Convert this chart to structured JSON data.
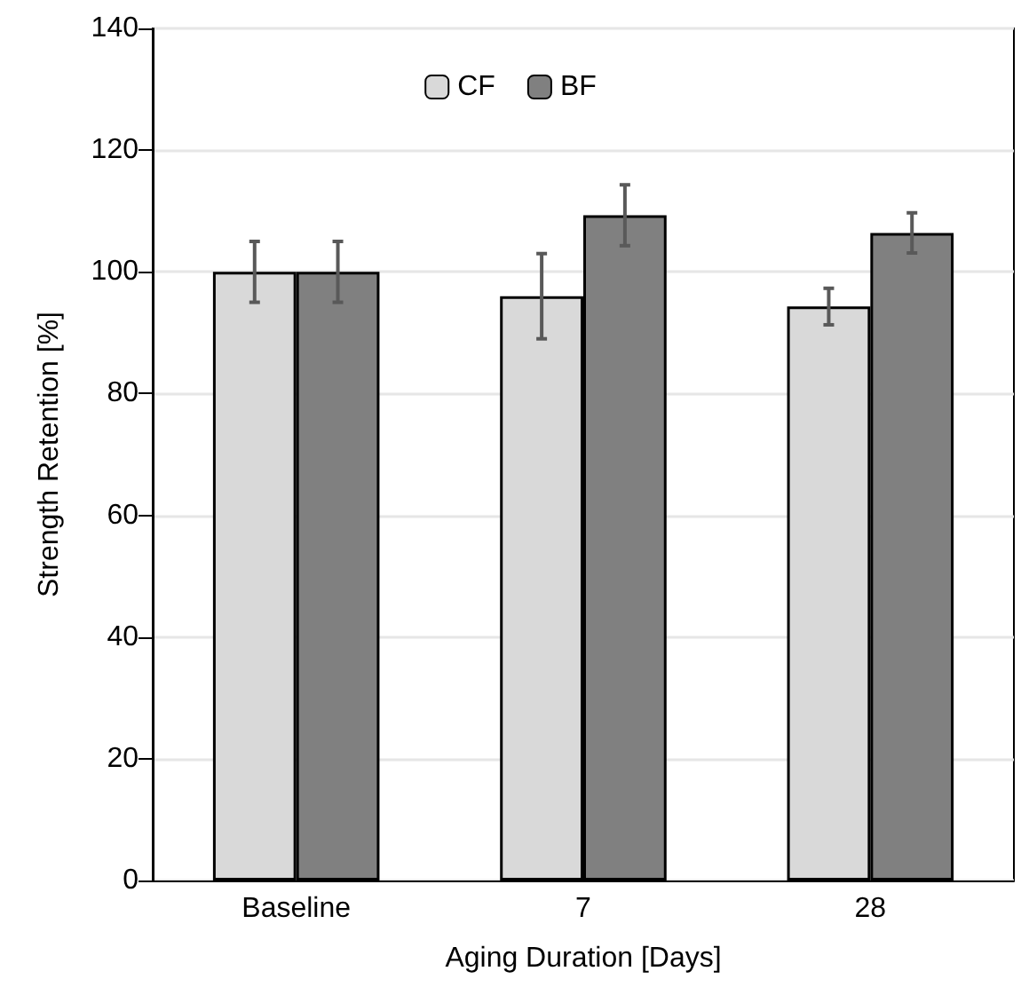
{
  "chart_data": {
    "type": "bar",
    "xlabel": "Aging Duration [Days]",
    "ylabel": "Strength Retention [%]",
    "categories": [
      "Baseline",
      "7",
      "28"
    ],
    "series": [
      {
        "name": "CF",
        "color": "#d9d9d9",
        "values": [
          100,
          96,
          94.3
        ],
        "errors": [
          5,
          7,
          3
        ]
      },
      {
        "name": "BF",
        "color": "#808080",
        "values": [
          100,
          109.3,
          106.4
        ],
        "errors": [
          5,
          5,
          3.3
        ]
      }
    ],
    "ylim": [
      0,
      140
    ],
    "yticks": [
      0,
      20,
      40,
      60,
      80,
      100,
      120,
      140
    ],
    "grid": "y",
    "legend": "top"
  }
}
